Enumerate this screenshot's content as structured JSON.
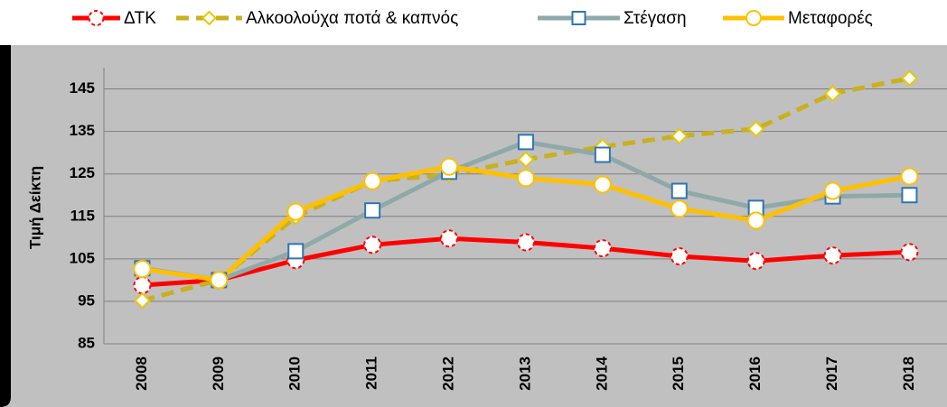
{
  "chart_data": {
    "type": "line",
    "y_label": "Τιμή Δείκτη",
    "categories": [
      "2008",
      "2009",
      "2010",
      "2011",
      "2012",
      "2013",
      "2014",
      "2015",
      "2016",
      "2017",
      "2018"
    ],
    "ylim": [
      85,
      150
    ],
    "yticks": [
      85,
      95,
      105,
      115,
      125,
      135,
      145
    ],
    "grid": true,
    "series": [
      {
        "name": "ΔΤΚ",
        "color": "#ff0000",
        "marker": "circle",
        "marker_color": "#ff0000",
        "dash": false,
        "values": [
          98.8,
          100,
          104.7,
          108.3,
          109.8,
          108.9,
          107.5,
          105.6,
          104.5,
          105.8,
          106.6
        ]
      },
      {
        "name": "Αλκοολούχα ποτά & καπνός",
        "color": "#c9b01e",
        "marker": "diamond",
        "marker_color": "#e8c800",
        "dash": true,
        "values": [
          95.2,
          100,
          114.9,
          123.3,
          124.8,
          128.4,
          131.4,
          133.9,
          135.6,
          143.9,
          147.5
        ]
      },
      {
        "name": "Στέγαση",
        "color": "#8fa9a9",
        "marker": "square",
        "marker_color": "#2e75b6",
        "dash": false,
        "values": [
          102.8,
          100,
          106.8,
          116.4,
          125.5,
          132.5,
          129.5,
          121,
          117,
          119.7,
          120
        ]
      },
      {
        "name": "Μεταφορές",
        "color": "#ffc000",
        "marker": "circle",
        "marker_color": "#ffc000",
        "dash": false,
        "values": [
          102.6,
          100,
          116.1,
          123.3,
          126.7,
          124,
          122.5,
          116.8,
          114,
          121,
          124.4
        ]
      }
    ]
  }
}
